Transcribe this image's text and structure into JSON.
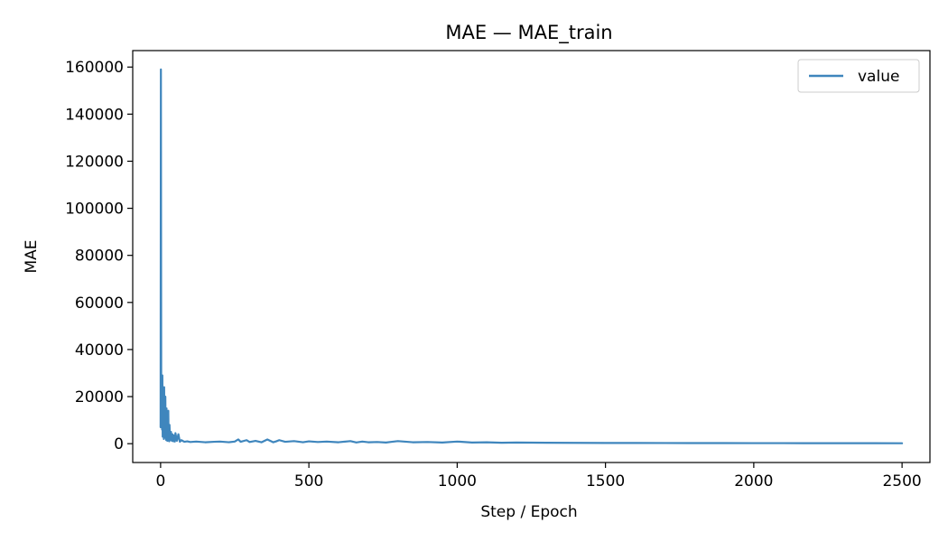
{
  "chart_data": {
    "type": "line",
    "title": "MAE — MAE_train",
    "xlabel": "Step / Epoch",
    "ylabel": "MAE",
    "xlim": [
      -94,
      2594
    ],
    "ylim": [
      -8000,
      167000
    ],
    "xticks": [
      0,
      500,
      1000,
      1500,
      2000,
      2500
    ],
    "yticks": [
      0,
      20000,
      40000,
      60000,
      80000,
      100000,
      120000,
      140000,
      160000
    ],
    "grid": false,
    "legend_position": "top-right",
    "color": "#3f86bd",
    "series": [
      {
        "name": "value",
        "x": [
          0,
          1,
          2,
          3,
          4,
          5,
          6,
          7,
          8,
          9,
          10,
          11,
          12,
          13,
          14,
          15,
          16,
          17,
          18,
          19,
          20,
          21,
          22,
          23,
          24,
          25,
          26,
          27,
          28,
          29,
          30,
          32,
          35,
          38,
          40,
          43,
          45,
          48,
          50,
          55,
          60,
          65,
          70,
          80,
          90,
          100,
          120,
          150,
          180,
          200,
          230,
          250,
          262,
          270,
          290,
          300,
          320,
          340,
          360,
          380,
          390,
          400,
          420,
          450,
          480,
          500,
          530,
          560,
          600,
          640,
          660,
          680,
          700,
          730,
          760,
          780,
          800,
          850,
          900,
          950,
          1000,
          1050,
          1100,
          1150,
          1200,
          1250,
          1300,
          1400,
          1500,
          1600,
          1700,
          1800,
          1900,
          2000,
          2100,
          2200,
          2300,
          2400,
          2500
        ],
        "y": [
          7000,
          159000,
          30000,
          9000,
          25000,
          6000,
          29000,
          3000,
          23000,
          8000,
          19000,
          2000,
          24000,
          5000,
          13000,
          2500,
          20000,
          4000,
          9000,
          1500,
          15000,
          3500,
          11000,
          1200,
          9000,
          2000,
          14000,
          1800,
          6000,
          1000,
          8000,
          1500,
          5000,
          1200,
          4000,
          1000,
          3500,
          900,
          4500,
          1200,
          4000,
          800,
          1500,
          800,
          1000,
          700,
          900,
          600,
          800,
          900,
          600,
          900,
          1800,
          800,
          1500,
          700,
          1200,
          600,
          1800,
          600,
          1000,
          1500,
          800,
          1100,
          600,
          1000,
          700,
          900,
          600,
          1100,
          500,
          900,
          600,
          700,
          500,
          800,
          1100,
          600,
          700,
          500,
          900,
          500,
          600,
          400,
          500,
          450,
          400,
          350,
          300,
          300,
          280,
          260,
          240,
          230,
          220,
          210,
          200,
          190,
          180
        ]
      }
    ]
  }
}
